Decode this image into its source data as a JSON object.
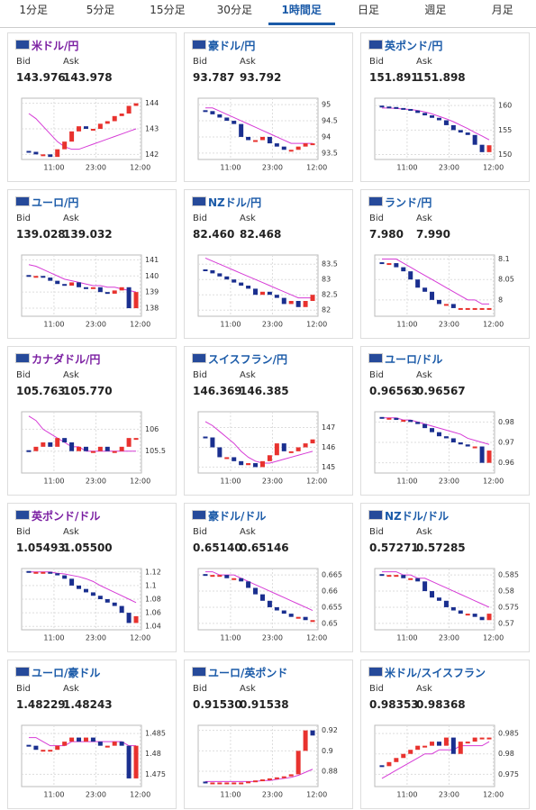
{
  "tabs": [
    "1分足",
    "5分足",
    "15分足",
    "30分足",
    "1時間足",
    "日足",
    "週足",
    "月足"
  ],
  "active_tab": 4,
  "bid_label": "Bid",
  "ask_label": "Ask",
  "xtick_labels": [
    "11:00",
    "23:00",
    "12:00"
  ],
  "up_color": "#e8322e",
  "down_color": "#1a2f8f",
  "ma_color": "#d63bd6",
  "panels": [
    {
      "name": "米ドル/円",
      "link_color": "#7b1fa2",
      "bid": "143.976",
      "ask": "143.978",
      "ylim": [
        141.8,
        144.2
      ],
      "yticks": [
        142,
        143,
        144
      ],
      "closes": [
        142.1,
        142.0,
        142.0,
        141.9,
        142.2,
        142.5,
        142.9,
        143.1,
        143.0,
        143.0,
        143.2,
        143.3,
        143.5,
        143.6,
        143.9,
        144.0
      ],
      "ma": [
        143.6,
        143.4,
        143.1,
        142.8,
        142.5,
        142.3,
        142.2,
        142.2,
        142.3,
        142.4,
        142.5,
        142.6,
        142.7,
        142.8,
        142.9,
        143.0
      ]
    },
    {
      "name": "豪ドル/円",
      "link_color": "#1a5aa8",
      "bid": "93.787",
      "ask": "93.792",
      "ylim": [
        93.3,
        95.2
      ],
      "yticks": [
        93.5,
        94,
        94.5,
        95
      ],
      "closes": [
        94.8,
        94.7,
        94.6,
        94.5,
        94.4,
        94.0,
        93.9,
        93.9,
        94.0,
        93.8,
        93.7,
        93.6,
        93.6,
        93.7,
        93.8,
        93.8
      ],
      "ma": [
        94.9,
        94.9,
        94.8,
        94.7,
        94.6,
        94.5,
        94.4,
        94.3,
        94.2,
        94.1,
        94.0,
        93.9,
        93.8,
        93.8,
        93.8,
        93.8
      ]
    },
    {
      "name": "英ポンド/円",
      "link_color": "#1a5aa8",
      "bid": "151.891",
      "ask": "151.898",
      "ylim": [
        149,
        161.5
      ],
      "yticks": [
        150,
        155,
        160
      ],
      "closes": [
        159.8,
        159.7,
        159.5,
        159.3,
        159.0,
        158.5,
        158.0,
        157.5,
        157.0,
        156.0,
        155.0,
        154.5,
        154.0,
        152.0,
        150.5,
        151.9
      ],
      "ma": [
        159.5,
        159.5,
        159.4,
        159.3,
        159.2,
        159.0,
        158.7,
        158.3,
        157.8,
        157.3,
        156.7,
        156.0,
        155.3,
        154.5,
        153.8,
        153.0
      ]
    },
    {
      "name": "ユーロ/円",
      "link_color": "#1a5aa8",
      "bid": "139.028",
      "ask": "139.032",
      "ylim": [
        137.5,
        141.3
      ],
      "yticks": [
        138,
        139,
        140,
        141
      ],
      "closes": [
        140.0,
        140.0,
        139.9,
        139.7,
        139.5,
        139.4,
        139.6,
        139.3,
        139.2,
        139.3,
        139.0,
        138.9,
        139.1,
        139.3,
        138.0,
        139.0
      ],
      "ma": [
        140.7,
        140.6,
        140.4,
        140.2,
        140.0,
        139.8,
        139.7,
        139.6,
        139.5,
        139.4,
        139.4,
        139.3,
        139.3,
        139.2,
        139.1,
        139.0
      ]
    },
    {
      "name": "NZドル/円",
      "link_color": "#1a5aa8",
      "bid": "82.460",
      "ask": "82.468",
      "ylim": [
        81.8,
        83.8
      ],
      "yticks": [
        82,
        82.5,
        83,
        83.5
      ],
      "closes": [
        83.3,
        83.2,
        83.1,
        83.0,
        82.9,
        82.8,
        82.7,
        82.5,
        82.6,
        82.5,
        82.4,
        82.2,
        82.3,
        82.1,
        82.3,
        82.5
      ],
      "ma": [
        83.7,
        83.6,
        83.5,
        83.4,
        83.3,
        83.2,
        83.1,
        83.0,
        82.9,
        82.8,
        82.7,
        82.6,
        82.5,
        82.4,
        82.4,
        82.4
      ]
    },
    {
      "name": "ランド/円",
      "link_color": "#1a5aa8",
      "bid": "7.980",
      "ask": "7.990",
      "ylim": [
        7.96,
        8.11
      ],
      "yticks": [
        8,
        8.05,
        8.1
      ],
      "closes": [
        8.09,
        8.09,
        8.08,
        8.07,
        8.05,
        8.03,
        8.02,
        8.0,
        7.99,
        7.99,
        7.98,
        7.98,
        7.98,
        7.98,
        7.98,
        7.98
      ],
      "ma": [
        8.1,
        8.1,
        8.1,
        8.09,
        8.08,
        8.07,
        8.06,
        8.05,
        8.04,
        8.03,
        8.02,
        8.01,
        8.0,
        8.0,
        7.99,
        7.99
      ]
    },
    {
      "name": "カナダドル/円",
      "link_color": "#7b1fa2",
      "bid": "105.763",
      "ask": "105.770",
      "ylim": [
        105,
        106.4
      ],
      "yticks": [
        105.5,
        106
      ],
      "closes": [
        105.5,
        105.6,
        105.7,
        105.6,
        105.8,
        105.7,
        105.5,
        105.6,
        105.5,
        105.5,
        105.6,
        105.5,
        105.5,
        105.6,
        105.8,
        105.8
      ],
      "ma": [
        106.3,
        106.2,
        106.0,
        105.9,
        105.8,
        105.7,
        105.6,
        105.6,
        105.5,
        105.5,
        105.5,
        105.5,
        105.5,
        105.5,
        105.5,
        105.5
      ]
    },
    {
      "name": "スイスフラン/円",
      "link_color": "#1a5aa8",
      "bid": "146.369",
      "ask": "146.385",
      "ylim": [
        144.7,
        147.8
      ],
      "yticks": [
        145,
        146,
        147
      ],
      "closes": [
        146.5,
        146.0,
        145.5,
        145.5,
        145.3,
        145.1,
        145.2,
        145.0,
        145.3,
        145.6,
        146.2,
        145.8,
        145.8,
        146.0,
        146.2,
        146.4
      ],
      "ma": [
        147.3,
        147.1,
        146.8,
        146.5,
        146.2,
        145.8,
        145.5,
        145.3,
        145.2,
        145.2,
        145.3,
        145.4,
        145.5,
        145.6,
        145.7,
        145.8
      ]
    },
    {
      "name": "ユーロ/ドル",
      "link_color": "#1a5aa8",
      "bid": "0.96563",
      "ask": "0.96567",
      "ylim": [
        0.955,
        0.985
      ],
      "yticks": [
        0.96,
        0.97,
        0.98
      ],
      "closes": [
        0.982,
        0.982,
        0.981,
        0.981,
        0.98,
        0.979,
        0.977,
        0.975,
        0.973,
        0.972,
        0.97,
        0.969,
        0.968,
        0.968,
        0.96,
        0.966
      ],
      "ma": [
        0.982,
        0.982,
        0.982,
        0.981,
        0.981,
        0.98,
        0.979,
        0.978,
        0.977,
        0.976,
        0.975,
        0.974,
        0.972,
        0.971,
        0.97,
        0.969
      ]
    },
    {
      "name": "英ポンド/ドル",
      "link_color": "#7b1fa2",
      "bid": "1.05493",
      "ask": "1.05500",
      "ylim": [
        1.035,
        1.125
      ],
      "yticks": [
        1.04,
        1.06,
        1.08,
        1.1,
        1.12
      ],
      "closes": [
        1.12,
        1.12,
        1.12,
        1.118,
        1.115,
        1.11,
        1.1,
        1.095,
        1.09,
        1.085,
        1.08,
        1.075,
        1.07,
        1.06,
        1.045,
        1.055
      ],
      "ma": [
        1.12,
        1.12,
        1.12,
        1.12,
        1.118,
        1.117,
        1.115,
        1.113,
        1.11,
        1.106,
        1.1,
        1.095,
        1.09,
        1.085,
        1.08,
        1.075
      ]
    },
    {
      "name": "豪ドル/ドル",
      "link_color": "#1a5aa8",
      "bid": "0.65140",
      "ask": "0.65146",
      "ylim": [
        0.648,
        0.667
      ],
      "yticks": [
        0.65,
        0.655,
        0.66,
        0.665
      ],
      "closes": [
        0.665,
        0.665,
        0.665,
        0.664,
        0.664,
        0.663,
        0.661,
        0.659,
        0.657,
        0.655,
        0.654,
        0.653,
        0.652,
        0.652,
        0.651,
        0.651
      ],
      "ma": [
        0.666,
        0.666,
        0.665,
        0.665,
        0.665,
        0.664,
        0.663,
        0.662,
        0.661,
        0.66,
        0.659,
        0.658,
        0.657,
        0.656,
        0.655,
        0.654
      ]
    },
    {
      "name": "NZドル/ドル",
      "link_color": "#1a5aa8",
      "bid": "0.57271",
      "ask": "0.57285",
      "ylim": [
        0.568,
        0.587
      ],
      "yticks": [
        0.57,
        0.575,
        0.58,
        0.585
      ],
      "closes": [
        0.585,
        0.585,
        0.585,
        0.584,
        0.584,
        0.583,
        0.58,
        0.578,
        0.577,
        0.575,
        0.574,
        0.573,
        0.573,
        0.572,
        0.571,
        0.573
      ],
      "ma": [
        0.586,
        0.586,
        0.586,
        0.585,
        0.585,
        0.584,
        0.584,
        0.583,
        0.582,
        0.581,
        0.58,
        0.579,
        0.578,
        0.577,
        0.576,
        0.575
      ]
    },
    {
      "name": "ユーロ/豪ドル",
      "link_color": "#1a5aa8",
      "bid": "1.48229",
      "ask": "1.48243",
      "ylim": [
        1.472,
        1.487
      ],
      "yticks": [
        1.475,
        1.48,
        1.485
      ],
      "closes": [
        1.482,
        1.481,
        1.481,
        1.481,
        1.482,
        1.483,
        1.484,
        1.483,
        1.484,
        1.483,
        1.482,
        1.482,
        1.483,
        1.482,
        1.474,
        1.482
      ],
      "ma": [
        1.484,
        1.484,
        1.483,
        1.482,
        1.482,
        1.482,
        1.483,
        1.483,
        1.483,
        1.483,
        1.483,
        1.483,
        1.483,
        1.483,
        1.482,
        1.482
      ]
    },
    {
      "name": "ユーロ/英ポンド",
      "link_color": "#1a5aa8",
      "bid": "0.91530",
      "ask": "0.91538",
      "ylim": [
        0.865,
        0.925
      ],
      "yticks": [
        0.88,
        0.9,
        0.92
      ],
      "closes": [
        0.869,
        0.869,
        0.869,
        0.869,
        0.869,
        0.869,
        0.87,
        0.871,
        0.872,
        0.873,
        0.874,
        0.875,
        0.877,
        0.9,
        0.92,
        0.915
      ],
      "ma": [
        0.87,
        0.87,
        0.87,
        0.87,
        0.87,
        0.87,
        0.87,
        0.87,
        0.871,
        0.871,
        0.872,
        0.873,
        0.874,
        0.876,
        0.879,
        0.882
      ]
    },
    {
      "name": "米ドル/スイスフラン",
      "link_color": "#1a5aa8",
      "bid": "0.98353",
      "ask": "0.98368",
      "ylim": [
        0.972,
        0.987
      ],
      "yticks": [
        0.975,
        0.98,
        0.985
      ],
      "closes": [
        0.977,
        0.978,
        0.979,
        0.98,
        0.981,
        0.982,
        0.982,
        0.983,
        0.982,
        0.984,
        0.98,
        0.983,
        0.983,
        0.984,
        0.984,
        0.984
      ],
      "ma": [
        0.974,
        0.975,
        0.976,
        0.977,
        0.978,
        0.979,
        0.98,
        0.98,
        0.981,
        0.981,
        0.981,
        0.982,
        0.982,
        0.982,
        0.982,
        0.983
      ]
    }
  ]
}
